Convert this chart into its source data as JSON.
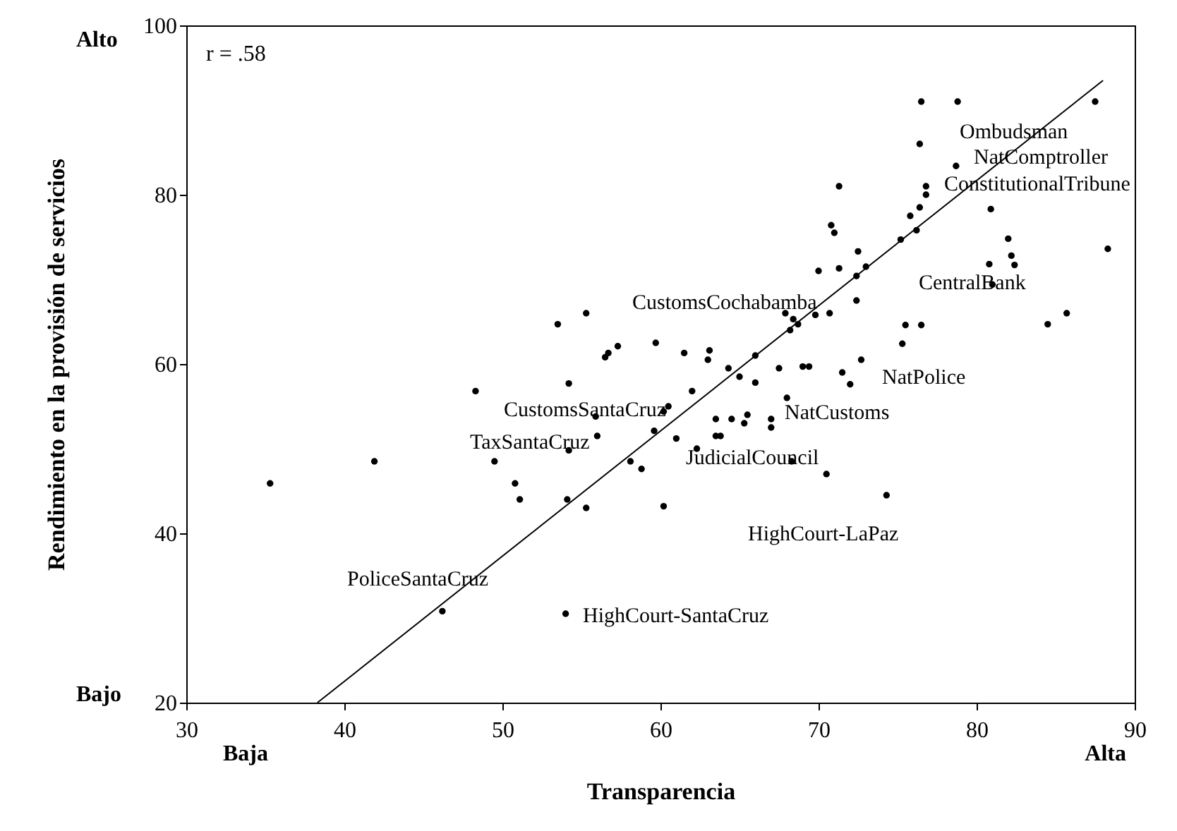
{
  "chart_data": {
    "type": "scatter",
    "xlabel": "Transparencia",
    "ylabel": "Rendimiento en la provisión de servicios",
    "xlim": [
      30,
      90
    ],
    "xticks": [
      30,
      40,
      50,
      60,
      70,
      80,
      90
    ],
    "ylim": [
      20,
      100
    ],
    "yticks": [
      20,
      40,
      60,
      80,
      100
    ],
    "grid": false,
    "marker": "circle",
    "series": [
      {
        "color": "#000000",
        "x": [
          35.3,
          41.9,
          46.2,
          48.3,
          49.5,
          50.8,
          51.1,
          53.5,
          54.2,
          54.1,
          54.2,
          54.0,
          55.3,
          55.3,
          56.5,
          56.7,
          57.3,
          55.9,
          56.0,
          58.1,
          58.8,
          59.6,
          60.2,
          60.2,
          59.7,
          60.5,
          61.0,
          61.5,
          62.0,
          62.3,
          63.0,
          63.1,
          63.5,
          63.8,
          63.5,
          64.3,
          64.5,
          65.0,
          65.3,
          65.5,
          66.0,
          66.0,
          67.0,
          67.0,
          67.5,
          68.0,
          68.3,
          67.9,
          68.2,
          68.4,
          68.7,
          69.0,
          69.4,
          69.8,
          70.0,
          70.5,
          70.7,
          70.8,
          71.0,
          71.3,
          71.3,
          71.5,
          72.0,
          72.4,
          72.4,
          72.5,
          72.7,
          73.0,
          74.3,
          75.2,
          75.3,
          75.5,
          75.8,
          76.2,
          76.4,
          76.4,
          76.5,
          76.5,
          76.8,
          76.8,
          78.8,
          78.7,
          80.9,
          81.0,
          80.8,
          82.0,
          82.2,
          82.4,
          84.5,
          85.7,
          87.5,
          88.3
        ],
        "values": [
          45.9,
          48.5,
          30.8,
          56.8,
          48.5,
          45.9,
          44.0,
          64.7,
          57.7,
          44.0,
          49.8,
          30.5,
          66.0,
          43.0,
          60.8,
          61.3,
          62.1,
          53.8,
          51.5,
          48.5,
          47.6,
          52.1,
          54.4,
          43.2,
          62.5,
          55.0,
          51.2,
          61.3,
          56.8,
          50.0,
          60.5,
          61.6,
          51.5,
          51.5,
          53.5,
          59.5,
          53.5,
          58.5,
          53.0,
          54.0,
          61.0,
          57.8,
          52.5,
          53.5,
          59.5,
          56.0,
          48.5,
          66.0,
          64.0,
          65.3,
          64.7,
          59.7,
          59.7,
          65.8,
          71.0,
          47.0,
          66.0,
          76.4,
          75.5,
          81.0,
          71.3,
          59.0,
          57.6,
          67.5,
          70.4,
          73.3,
          60.5,
          71.5,
          44.5,
          74.7,
          62.4,
          64.6,
          77.5,
          75.8,
          78.5,
          86.0,
          91.0,
          64.6,
          80.0,
          81.0,
          91.0,
          83.4,
          78.3,
          69.4,
          71.8,
          74.8,
          72.8,
          71.7,
          64.7,
          66.0,
          91.0,
          73.6
        ]
      },
      {
        "type": "line",
        "color": "#000000",
        "line_style": "solid",
        "marker": "none",
        "x": [
          38.3,
          88.0
        ],
        "values": [
          20,
          93.5
        ]
      }
    ],
    "annotations": [
      "r = .58",
      "Alto",
      "Bajo",
      "Baja",
      "Alta",
      "Ombudsman",
      "NatComptroller",
      "ConstitutionalTribune",
      "CentralBank",
      "CustomsCochabamba",
      "NatPolice",
      "CustomsSantaCruz",
      "NatCustoms",
      "TaxSantaCruz",
      "JudicialCouncil",
      "HighCourt-LaPaz",
      "PoliceSantaCruz",
      "HighCourt-SantaCruz"
    ]
  }
}
